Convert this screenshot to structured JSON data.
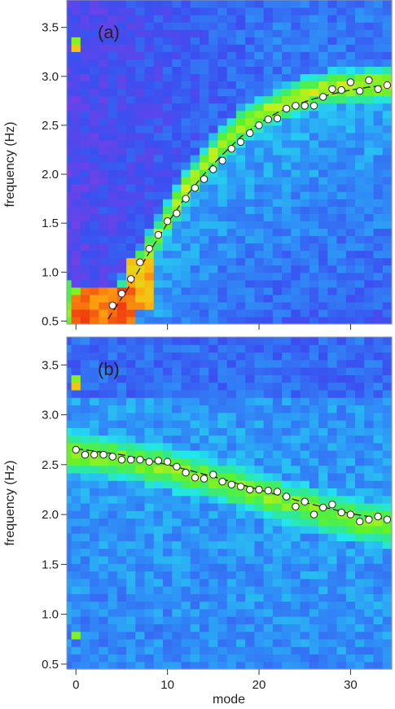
{
  "colors": {
    "colormap": [
      "#7b3fe6",
      "#3a4ff0",
      "#2f8ff7",
      "#22e6ee",
      "#2fe98f",
      "#5df22a",
      "#d2ee1a",
      "#ffb410",
      "#f03c0f"
    ],
    "marker_fill": "#ffffff",
    "marker_stroke": "#222222",
    "fit_line": "#111111"
  },
  "chart_data": [
    {
      "type": "heatmap",
      "panel_label": "(a)",
      "xlabel": "",
      "ylabel": "frequency (Hz)",
      "xlim": [
        -1,
        34.5
      ],
      "ylim": [
        0.47,
        3.78
      ],
      "xticks": [
        0,
        10,
        20,
        30
      ],
      "xtick_labels": [
        "",
        "",
        "",
        ""
      ],
      "yticks": [
        0.5,
        1.0,
        1.5,
        2.0,
        2.5,
        3.0,
        3.5
      ],
      "ytick_labels": [
        "0.5",
        "1.0",
        "1.5",
        "2.0",
        "2.5",
        "3.0",
        "3.5"
      ],
      "ridge": {
        "x": [
          1,
          2,
          3,
          4,
          5,
          6,
          7,
          8,
          10,
          12,
          14,
          16,
          18,
          20,
          22,
          24,
          26,
          28,
          30,
          32,
          34
        ],
        "y": [
          0.6,
          0.6,
          0.6,
          0.62,
          0.74,
          0.9,
          1.07,
          1.22,
          1.55,
          1.85,
          2.1,
          2.3,
          2.48,
          2.6,
          2.7,
          2.78,
          2.84,
          2.88,
          2.9,
          2.91,
          2.92
        ],
        "width": 0.2
      },
      "background": "rising-left",
      "points": {
        "x": [
          4,
          5,
          6,
          7,
          8,
          9,
          10,
          11,
          12,
          13,
          14,
          15,
          16,
          17,
          18,
          19,
          20,
          21,
          22,
          23,
          24,
          25,
          26,
          27,
          28,
          29,
          30,
          31,
          32,
          33,
          34
        ],
        "y": [
          0.66,
          0.78,
          0.93,
          1.1,
          1.24,
          1.38,
          1.52,
          1.6,
          1.75,
          1.86,
          1.95,
          2.05,
          2.14,
          2.26,
          2.33,
          2.42,
          2.5,
          2.56,
          2.57,
          2.67,
          2.7,
          2.7,
          2.7,
          2.79,
          2.87,
          2.86,
          2.94,
          2.85,
          2.96,
          2.87,
          2.91
        ]
      },
      "fit": {
        "x": [
          3.5,
          6,
          8,
          10,
          12,
          14,
          16,
          18,
          20,
          22,
          24,
          26,
          28,
          30,
          32,
          34
        ],
        "y": [
          0.52,
          0.88,
          1.2,
          1.5,
          1.77,
          2.0,
          2.2,
          2.38,
          2.52,
          2.63,
          2.71,
          2.77,
          2.82,
          2.86,
          2.89,
          2.91
        ]
      }
    },
    {
      "type": "heatmap",
      "panel_label": "(b)",
      "xlabel": "mode",
      "ylabel": "frequency (Hz)",
      "xlim": [
        -1,
        34.5
      ],
      "ylim": [
        0.45,
        3.78
      ],
      "xticks": [
        0,
        10,
        20,
        30
      ],
      "xtick_labels": [
        "0",
        "10",
        "20",
        "30"
      ],
      "yticks": [
        0.5,
        1.0,
        1.5,
        2.0,
        2.5,
        3.0,
        3.5
      ],
      "ytick_labels": [
        "0.5",
        "1.0",
        "1.5",
        "2.0",
        "2.5",
        "3.0",
        "3.5"
      ],
      "ridge": {
        "x": [
          0,
          5,
          10,
          15,
          20,
          25,
          30,
          34
        ],
        "y": [
          2.62,
          2.55,
          2.47,
          2.35,
          2.22,
          2.08,
          1.95,
          1.88
        ],
        "width": 0.26
      },
      "background": "flat",
      "points": {
        "x": [
          0,
          1,
          2,
          3,
          4,
          5,
          6,
          7,
          8,
          9,
          10,
          11,
          12,
          13,
          14,
          15,
          16,
          17,
          18,
          19,
          20,
          21,
          22,
          23,
          24,
          25,
          26,
          27,
          28,
          29,
          30,
          31,
          32,
          33,
          34
        ],
        "y": [
          2.65,
          2.6,
          2.6,
          2.6,
          2.58,
          2.55,
          2.55,
          2.55,
          2.53,
          2.54,
          2.53,
          2.48,
          2.42,
          2.37,
          2.36,
          2.4,
          2.33,
          2.3,
          2.28,
          2.25,
          2.25,
          2.24,
          2.23,
          2.18,
          2.08,
          2.13,
          2.0,
          2.07,
          2.1,
          2.02,
          2.0,
          1.93,
          1.95,
          1.98,
          1.95
        ]
      },
      "fit": {
        "x": [
          0,
          5,
          10,
          15,
          20,
          25,
          30,
          34
        ],
        "y": [
          2.66,
          2.6,
          2.5,
          2.38,
          2.25,
          2.12,
          2.01,
          1.95
        ]
      }
    }
  ]
}
